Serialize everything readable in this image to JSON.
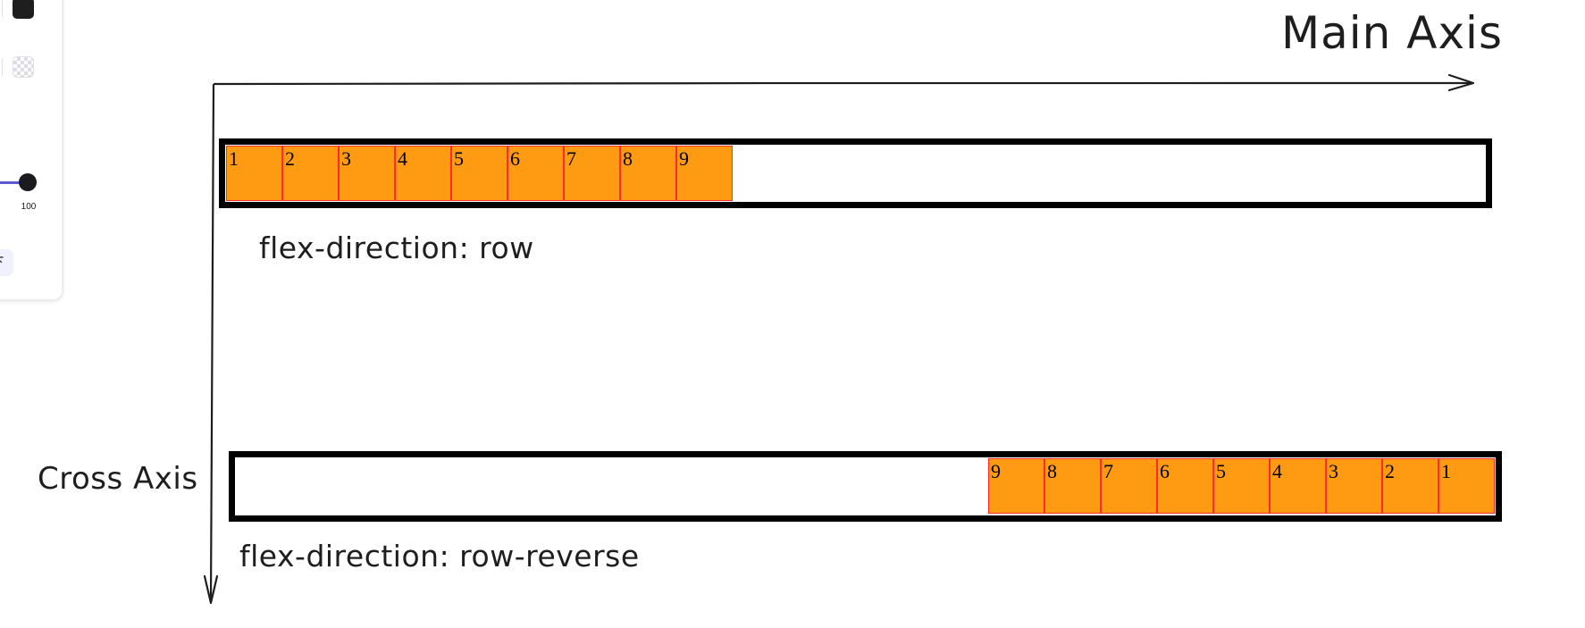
{
  "panel": {
    "colors": {
      "stroke_orange": "#f08c00",
      "stroke_black": "#1e1e1e",
      "background_yellow": "#ffec99",
      "background_transparent": "transparent"
    },
    "opacity_value": "100",
    "slider_color": "#5b57d1"
  },
  "axes": {
    "main_label": "Main Axis",
    "cross_label": "Cross Axis"
  },
  "examples": {
    "row": {
      "caption": "flex-direction: row",
      "items": [
        "1",
        "2",
        "3",
        "4",
        "5",
        "6",
        "7",
        "8",
        "9"
      ]
    },
    "row_reverse": {
      "caption": "flex-direction: row-reverse",
      "items": [
        "1",
        "2",
        "3",
        "4",
        "5",
        "6",
        "7",
        "8",
        "9"
      ]
    }
  },
  "style": {
    "item_fill": "#ff9b12",
    "item_border": "#ff2a2a",
    "container_border": "#000000"
  }
}
